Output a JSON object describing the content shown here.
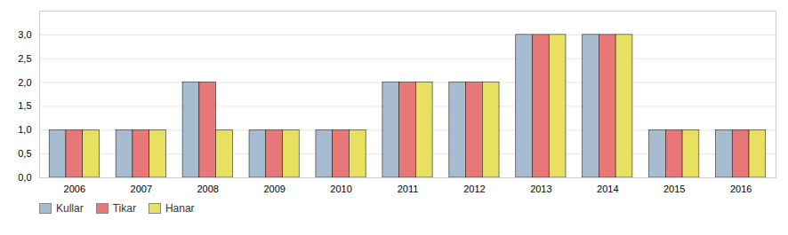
{
  "chart_data": {
    "type": "bar",
    "categories": [
      "2006",
      "2007",
      "2008",
      "2009",
      "2010",
      "2011",
      "2012",
      "2013",
      "2014",
      "2015",
      "2016"
    ],
    "series": [
      {
        "name": "Kullar",
        "color": "#a8bcd0",
        "values": [
          1,
          1,
          2,
          1,
          1,
          2,
          2,
          3,
          3,
          1,
          1
        ]
      },
      {
        "name": "Tikar",
        "color": "#e87878",
        "values": [
          1,
          1,
          2,
          1,
          1,
          2,
          2,
          3,
          3,
          1,
          1
        ]
      },
      {
        "name": "Hanar",
        "color": "#e8e060",
        "values": [
          1,
          1,
          1,
          1,
          1,
          2,
          2,
          3,
          3,
          1,
          1
        ]
      }
    ],
    "ylim": [
      0,
      3.5
    ],
    "yticks": [
      {
        "value": 0.0,
        "label": "0,0"
      },
      {
        "value": 0.5,
        "label": "0,5"
      },
      {
        "value": 1.0,
        "label": "1,0"
      },
      {
        "value": 1.5,
        "label": "1,5"
      },
      {
        "value": 2.0,
        "label": "2,0"
      },
      {
        "value": 2.5,
        "label": "2,5"
      },
      {
        "value": 3.0,
        "label": "3,0"
      }
    ],
    "grid": true,
    "legend": "lower left"
  }
}
